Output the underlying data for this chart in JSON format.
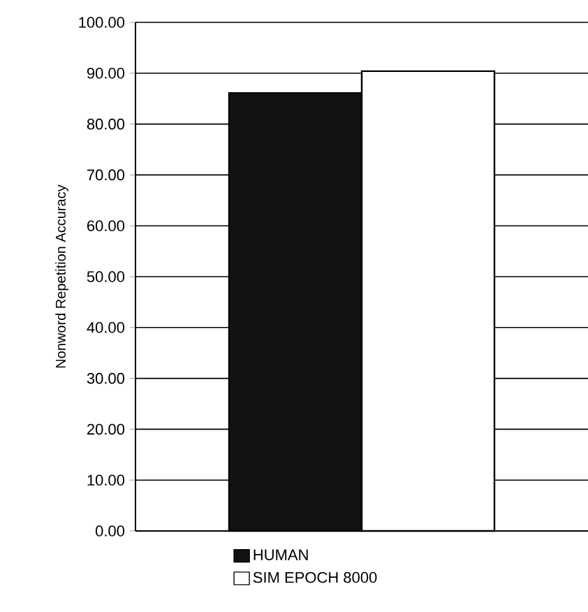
{
  "chart_data": {
    "type": "bar",
    "ylabel": "Nonword Repetition Accuracy",
    "categories": [
      null
    ],
    "series": [
      {
        "name": "HUMAN",
        "color": "#111311",
        "values": [
          86.1
        ]
      },
      {
        "name": "SIM EPOCH 8000",
        "color": "#ffffff",
        "values": [
          90.4
        ]
      }
    ],
    "ylim": [
      0,
      100
    ],
    "yticks": [
      {
        "value": 0,
        "label": "0.00"
      },
      {
        "value": 10,
        "label": "10.00"
      },
      {
        "value": 20,
        "label": "20.00"
      },
      {
        "value": 30,
        "label": "30.00"
      },
      {
        "value": 40,
        "label": "40.00"
      },
      {
        "value": 50,
        "label": "50.00"
      },
      {
        "value": 60,
        "label": "60.00"
      },
      {
        "value": 70,
        "label": "70.00"
      },
      {
        "value": 80,
        "label": "80.00"
      },
      {
        "value": 90,
        "label": "90.00"
      },
      {
        "value": 100,
        "label": "100.00"
      }
    ],
    "grid": "y",
    "legend": "bottom"
  }
}
